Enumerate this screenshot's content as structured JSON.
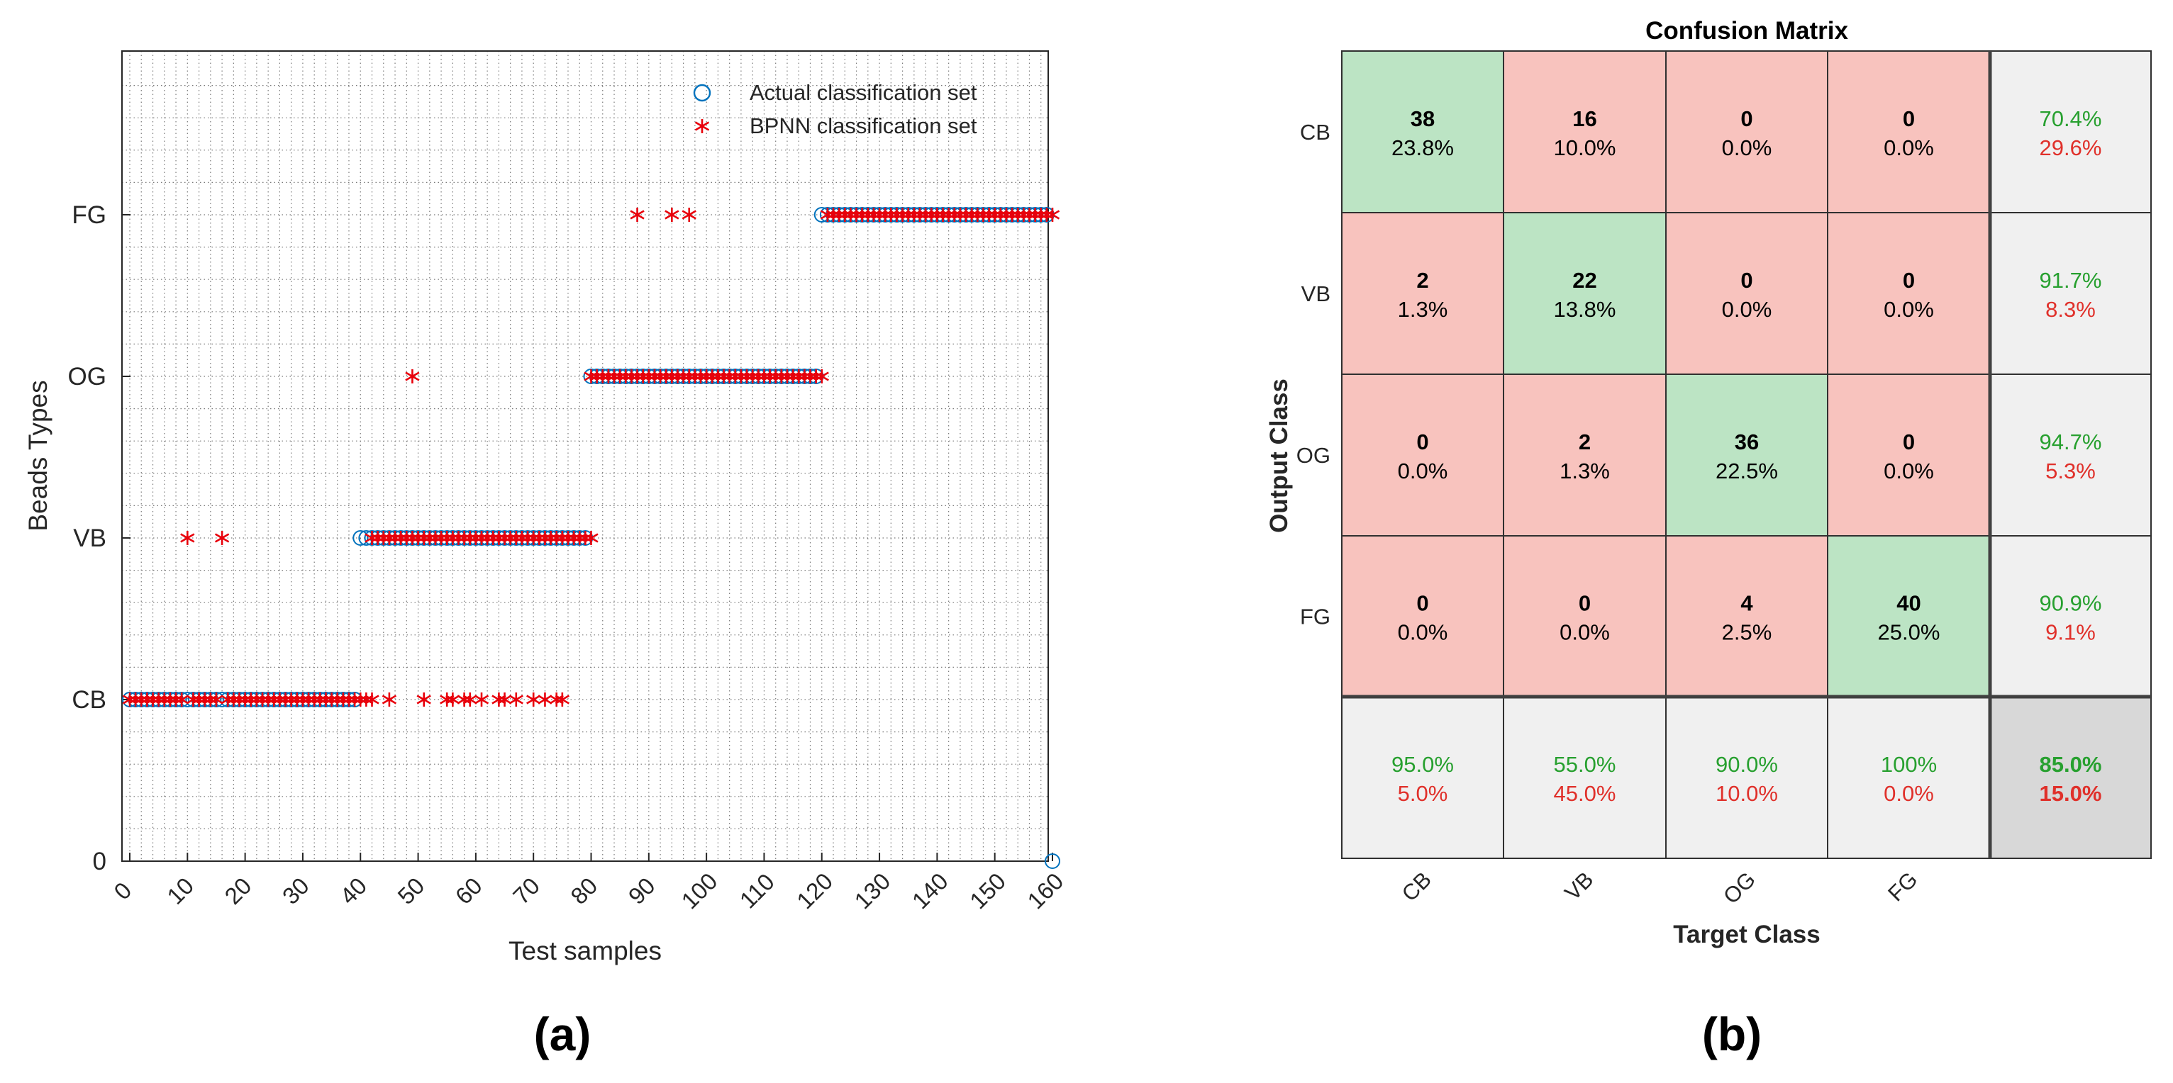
{
  "chart_data": [
    {
      "type": "scatter",
      "panel_label": "(a)",
      "title": "",
      "xlabel": "Test samples",
      "ylabel": "Beads Types",
      "xlim": [
        0,
        160
      ],
      "ylim": [
        0,
        5
      ],
      "grid": true,
      "legend_position": "top-right",
      "x_ticks": [
        0,
        10,
        20,
        30,
        40,
        50,
        60,
        70,
        80,
        90,
        100,
        110,
        120,
        130,
        140,
        150,
        160
      ],
      "y_ticks": [
        {
          "value": 0,
          "label": "0"
        },
        {
          "value": 1,
          "label": "CB"
        },
        {
          "value": 2,
          "label": "VB"
        },
        {
          "value": 3,
          "label": "OG"
        },
        {
          "value": 4,
          "label": "FG"
        }
      ],
      "series": [
        {
          "name": "Actual classification set",
          "marker": "circle",
          "color": "#0072BD",
          "runs": [
            {
              "from": 0,
              "to": 39,
              "value": 1
            },
            {
              "from": 40,
              "to": 79,
              "value": 2
            },
            {
              "from": 80,
              "to": 119,
              "value": 3
            },
            {
              "from": 120,
              "to": 159,
              "value": 4
            }
          ],
          "points": [
            [
              160,
              0
            ]
          ]
        },
        {
          "name": "BPNN classification set",
          "marker": "asterisk",
          "color": "#E8000B",
          "runs": [
            {
              "from": 0,
              "to": 9,
              "value": 1
            },
            {
              "from": 11,
              "to": 15,
              "value": 1
            },
            {
              "from": 17,
              "to": 41,
              "value": 1
            },
            {
              "from": 42,
              "to": 80,
              "value": 2
            },
            {
              "from": 80,
              "to": 120,
              "value": 3
            },
            {
              "from": 121,
              "to": 160,
              "value": 4
            }
          ],
          "points": [
            [
              10,
              2
            ],
            [
              16,
              2
            ],
            [
              42,
              1
            ],
            [
              45,
              1
            ],
            [
              51,
              1
            ],
            [
              55,
              1
            ],
            [
              56,
              1
            ],
            [
              58,
              1
            ],
            [
              59,
              1
            ],
            [
              61,
              1
            ],
            [
              64,
              1
            ],
            [
              65,
              1
            ],
            [
              67,
              1
            ],
            [
              70,
              1
            ],
            [
              72,
              1
            ],
            [
              74,
              1
            ],
            [
              75,
              1
            ],
            [
              49,
              3
            ],
            [
              88,
              4
            ],
            [
              94,
              4
            ],
            [
              97,
              4
            ]
          ]
        }
      ]
    },
    {
      "type": "heatmap",
      "panel_label": "(b)",
      "title": "Confusion Matrix",
      "xlabel": "Target Class",
      "ylabel": "Output Class",
      "classes": [
        "CB",
        "VB",
        "OG",
        "FG"
      ],
      "counts": [
        [
          38,
          16,
          0,
          0
        ],
        [
          2,
          22,
          0,
          0
        ],
        [
          0,
          2,
          36,
          0
        ],
        [
          0,
          0,
          4,
          40
        ]
      ],
      "percents": [
        [
          "23.8%",
          "10.0%",
          "0.0%",
          "0.0%"
        ],
        [
          "1.3%",
          "13.8%",
          "0.0%",
          "0.0%"
        ],
        [
          "0.0%",
          "1.3%",
          "22.5%",
          "0.0%"
        ],
        [
          "0.0%",
          "0.0%",
          "2.5%",
          "25.0%"
        ]
      ],
      "row_summary": [
        {
          "correct": "70.4%",
          "wrong": "29.6%"
        },
        {
          "correct": "91.7%",
          "wrong": "8.3%"
        },
        {
          "correct": "94.7%",
          "wrong": "5.3%"
        },
        {
          "correct": "90.9%",
          "wrong": "9.1%"
        }
      ],
      "col_summary": [
        {
          "correct": "95.0%",
          "wrong": "5.0%"
        },
        {
          "correct": "55.0%",
          "wrong": "45.0%"
        },
        {
          "correct": "90.0%",
          "wrong": "10.0%"
        },
        {
          "correct": "100%",
          "wrong": "0.0%"
        }
      ],
      "overall": {
        "correct": "85.0%",
        "wrong": "15.0%"
      },
      "colors": {
        "correct_cell": "#BCE4C4",
        "wrong_cell": "#F8C3BE",
        "summary_cell": "#F0F0F0",
        "overall_cell": "#D8D8D8",
        "correct_text": "#27A02F",
        "wrong_text": "#E0302A"
      }
    }
  ]
}
